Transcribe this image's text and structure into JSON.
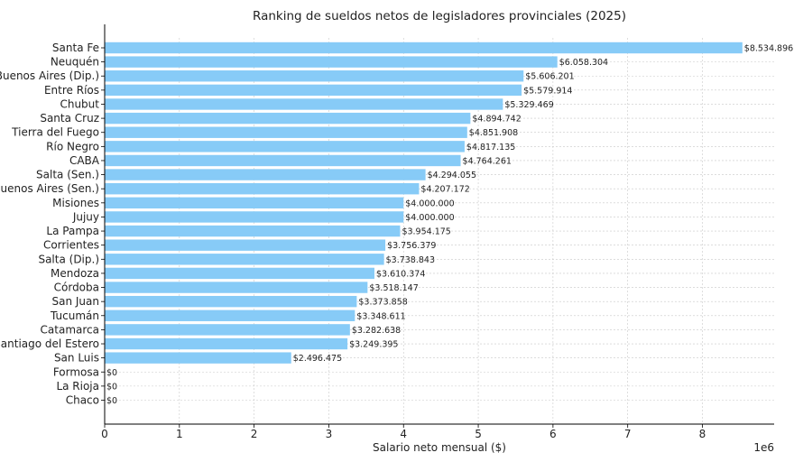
{
  "chart_data": {
    "type": "bar",
    "orientation": "horizontal",
    "title": "Ranking de sueldos netos de legisladores provinciales (2025)",
    "xlabel": "Salario neto mensual ($)",
    "ylabel": "",
    "x_scale_label": "1e6",
    "xlim": [
      0,
      8960000
    ],
    "x_ticks": [
      0,
      1,
      2,
      3,
      4,
      5,
      6,
      7,
      8
    ],
    "grid": true,
    "bar_color": "#87cbf7",
    "categories": [
      "Santa Fe",
      "Neuquén",
      "Buenos Aires (Dip.)",
      "Entre Ríos",
      "Chubut",
      "Santa Cruz",
      "Tierra del Fuego",
      "Río Negro",
      "CABA",
      "Salta (Sen.)",
      "Buenos Aires (Sen.)",
      "Misiones",
      "Jujuy",
      "La Pampa",
      "Corrientes",
      "Salta (Dip.)",
      "Mendoza",
      "Córdoba",
      "San Juan",
      "Tucumán",
      "Catamarca",
      "Santiago del Estero",
      "San Luis",
      "Formosa",
      "La Rioja",
      "Chaco"
    ],
    "values": [
      8534896,
      6058304,
      5606201,
      5579914,
      5329469,
      4894742,
      4851908,
      4817135,
      4764261,
      4294055,
      4207172,
      4000000,
      4000000,
      3954175,
      3756379,
      3738843,
      3610374,
      3518147,
      3373858,
      3348611,
      3282638,
      3249395,
      2496475,
      0,
      0,
      0
    ],
    "value_labels": [
      "$8.534.896",
      "$6.058.304",
      "$5.606.201",
      "$5.579.914",
      "$5.329.469",
      "$4.894.742",
      "$4.851.908",
      "$4.817.135",
      "$4.764.261",
      "$4.294.055",
      "$4.207.172",
      "$4.000.000",
      "$4.000.000",
      "$3.954.175",
      "$3.756.379",
      "$3.738.843",
      "$3.610.374",
      "$3.518.147",
      "$3.373.858",
      "$3.348.611",
      "$3.282.638",
      "$3.249.395",
      "$2.496.475",
      "$0",
      "$0",
      "$0"
    ]
  }
}
